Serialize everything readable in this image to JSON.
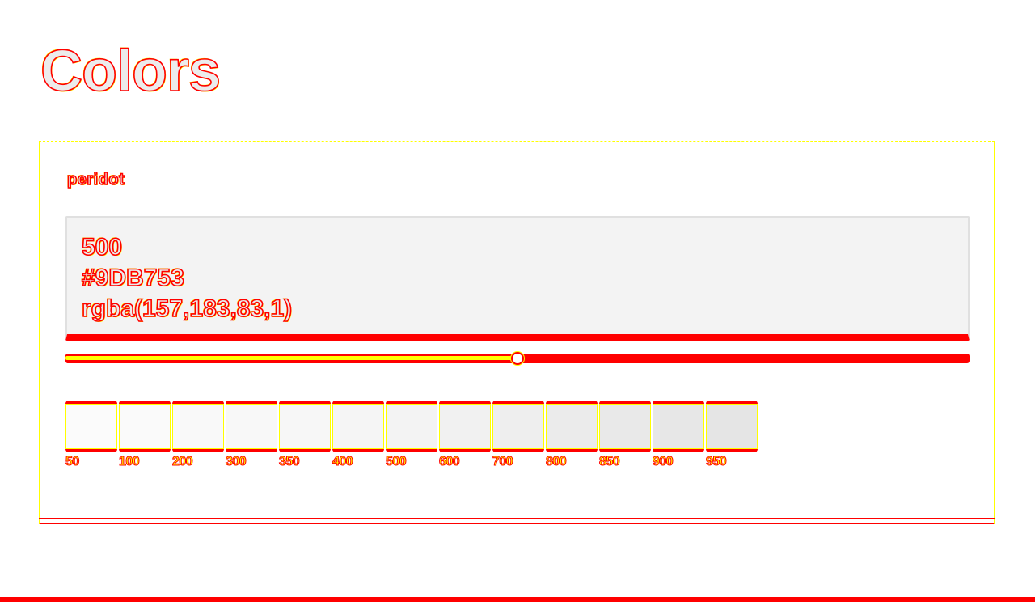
{
  "page": {
    "title": "Colors"
  },
  "palette": {
    "name": "peridot",
    "selected": {
      "shade": "500",
      "hex": "#9DB753",
      "rgba": "rgba(157,183,83,1)"
    },
    "slider_level_fraction": 0.5,
    "shades": [
      {
        "label": "50",
        "color": "#fbfbfb"
      },
      {
        "label": "100",
        "color": "#fafafa"
      },
      {
        "label": "200",
        "color": "#f9f9f9"
      },
      {
        "label": "300",
        "color": "#f8f8f8"
      },
      {
        "label": "350",
        "color": "#f7f7f7"
      },
      {
        "label": "400",
        "color": "#f5f5f5"
      },
      {
        "label": "500",
        "color": "#f3f3f3"
      },
      {
        "label": "600",
        "color": "#f1f1f1"
      },
      {
        "label": "700",
        "color": "#eeeeee"
      },
      {
        "label": "800",
        "color": "#ebebeb"
      },
      {
        "label": "850",
        "color": "#e9e9e9"
      },
      {
        "label": "900",
        "color": "#e7e7e7"
      },
      {
        "label": "950",
        "color": "#e5e5e5"
      }
    ]
  },
  "colors": {
    "outline_red": "#ff0000",
    "outline_yellow": "#ffff00",
    "info_box_bg": "#f3f3f3"
  }
}
